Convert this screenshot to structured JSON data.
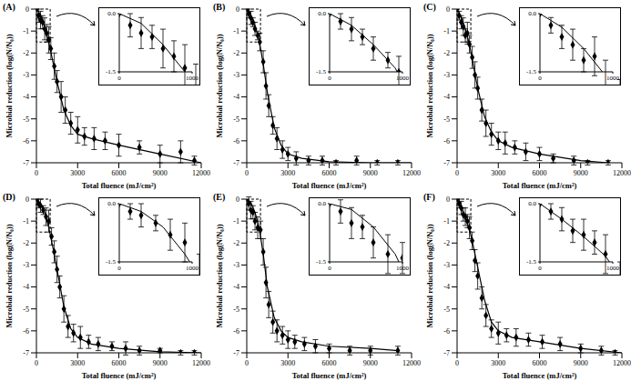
{
  "chart_data": [
    {
      "type": "scatter",
      "title": "(A)",
      "x_label": "Total fluence (mJ/cm²)",
      "y_label": "Microbial reduction (log(N/N₀))",
      "xlim": [
        0,
        12000
      ],
      "xticks": [
        0,
        3000,
        6000,
        9000,
        12000
      ],
      "ylim": [
        -7,
        0
      ],
      "yticks": [
        0,
        -1,
        -2,
        -3,
        -4,
        -5,
        -6,
        -7
      ],
      "color": "#000000",
      "marker": "diamond",
      "x": [
        0,
        150,
        300,
        450,
        600,
        750,
        900,
        1050,
        1300,
        1500,
        1800,
        2100,
        2500,
        3000,
        3500,
        4200,
        5000,
        6000,
        7500,
        9000,
        10500,
        11500
      ],
      "values": [
        0,
        -0.3,
        -0.5,
        -0.6,
        -0.9,
        -1.1,
        -1.4,
        -1.8,
        -2.6,
        -3.3,
        -4.0,
        -4.6,
        -5.2,
        -5.5,
        -5.8,
        -5.9,
        -6.0,
        -6.2,
        -6.3,
        -6.6,
        -6.5,
        -6.9
      ],
      "errors": [
        0,
        0.3,
        0.4,
        0.3,
        0.5,
        0.4,
        0.6,
        0.5,
        0.6,
        0.5,
        0.7,
        0.6,
        0.5,
        0.6,
        0.4,
        0.5,
        0.4,
        0.5,
        0.3,
        0.4,
        0.5,
        0.2
      ],
      "fit": {
        "x": [
          0,
          300,
          600,
          900,
          1200,
          1500,
          2000,
          2500,
          3000,
          4000,
          6000,
          9000,
          12000
        ],
        "values": [
          0,
          -0.25,
          -0.8,
          -1.5,
          -2.4,
          -3.3,
          -4.6,
          -5.3,
          -5.7,
          -5.9,
          -6.2,
          -6.6,
          -7.0
        ]
      },
      "inset": {
        "xlim": [
          0,
          1000
        ],
        "xticks": [
          0,
          1000
        ],
        "ylim": [
          -1.5,
          0
        ],
        "yticks": [
          {
            "value": 0,
            "label": "0.0"
          },
          -1.5
        ]
      }
    },
    {
      "type": "scatter",
      "title": "(B)",
      "x_label": "Total fluence (mJ/cm²)",
      "y_label": "Microbial reduction (log(N/N₀))",
      "xlim": [
        0,
        12000
      ],
      "xticks": [
        0,
        3000,
        6000,
        9000,
        12000
      ],
      "ylim": [
        -7,
        0
      ],
      "yticks": [
        0,
        -1,
        -2,
        -3,
        -4,
        -5,
        -6,
        -7
      ],
      "color": "#000000",
      "marker": "diamond",
      "x": [
        0,
        150,
        300,
        450,
        600,
        800,
        950,
        1200,
        1400,
        1600,
        1900,
        2200,
        2600,
        3000,
        3600,
        4500,
        5500,
        6500,
        8000,
        9500,
        11000
      ],
      "values": [
        0,
        -0.2,
        -0.4,
        -0.6,
        -0.9,
        -1.2,
        -1.5,
        -2.4,
        -3.5,
        -4.4,
        -5.3,
        -5.9,
        -6.4,
        -6.6,
        -6.8,
        -6.9,
        -6.9,
        -7.0,
        -6.9,
        -7.0,
        -7.0
      ],
      "errors": [
        0,
        0.2,
        0.3,
        0.2,
        0.3,
        0.2,
        0.4,
        0.5,
        0.6,
        0.5,
        0.4,
        0.5,
        0.4,
        0.3,
        0.3,
        0.2,
        0.2,
        0.1,
        0.2,
        0.1,
        0.1
      ],
      "fit": {
        "x": [
          0,
          300,
          600,
          900,
          1200,
          1500,
          2000,
          2500,
          3000,
          4000,
          6000,
          9000,
          12000
        ],
        "values": [
          0,
          -0.3,
          -0.8,
          -1.4,
          -2.5,
          -3.8,
          -5.4,
          -6.2,
          -6.6,
          -6.8,
          -6.95,
          -7.0,
          -7.0
        ]
      },
      "inset": {
        "xlim": [
          0,
          1000
        ],
        "xticks": [
          0,
          1000
        ],
        "ylim": [
          -1.5,
          0
        ],
        "yticks": [
          {
            "value": 0,
            "label": "0.0"
          },
          -1.5
        ]
      }
    },
    {
      "type": "scatter",
      "title": "(C)",
      "x_label": "Total fluence (mJ/cm²)",
      "y_label": "Microbial reduction (log(N/N₀))",
      "xlim": [
        0,
        12000
      ],
      "xticks": [
        0,
        3000,
        6000,
        9000,
        12000
      ],
      "ylim": [
        -7,
        0
      ],
      "yticks": [
        0,
        -1,
        -2,
        -3,
        -4,
        -5,
        -6,
        -7
      ],
      "color": "#000000",
      "marker": "diamond",
      "x": [
        0,
        150,
        300,
        450,
        600,
        750,
        900,
        1100,
        1300,
        1500,
        1800,
        2100,
        2500,
        3000,
        3500,
        4200,
        5000,
        6000,
        7000,
        8500,
        9500,
        11000
      ],
      "values": [
        0,
        -0.3,
        -0.6,
        -0.8,
        -1.2,
        -1.1,
        -1.6,
        -2.2,
        -3.0,
        -3.6,
        -4.6,
        -5.2,
        -5.7,
        -6.0,
        -6.1,
        -6.3,
        -6.5,
        -6.6,
        -6.8,
        -6.9,
        -7.0,
        -7.0
      ],
      "errors": [
        0,
        0.2,
        0.3,
        0.4,
        0.3,
        0.5,
        0.4,
        0.5,
        0.6,
        0.5,
        0.5,
        0.6,
        0.5,
        0.4,
        0.5,
        0.3,
        0.4,
        0.3,
        0.2,
        0.2,
        0.1,
        0.1
      ],
      "fit": {
        "x": [
          0,
          300,
          600,
          900,
          1200,
          1500,
          2000,
          2500,
          3000,
          4000,
          6000,
          9000,
          11000
        ],
        "values": [
          0,
          -0.35,
          -0.9,
          -1.6,
          -2.6,
          -3.6,
          -4.9,
          -5.6,
          -6.0,
          -6.3,
          -6.6,
          -6.9,
          -7.0
        ]
      },
      "inset": {
        "xlim": [
          0,
          1000
        ],
        "xticks": [
          0,
          1000
        ],
        "ylim": [
          -1.5,
          0
        ],
        "yticks": [
          {
            "value": 0,
            "label": "0.0"
          },
          -1.5
        ]
      }
    },
    {
      "type": "scatter",
      "title": "(D)",
      "x_label": "Total fluence (mJ/cm²)",
      "y_label": "Microbial reduction (log(N/N₀))",
      "xlim": [
        0,
        12000
      ],
      "xticks": [
        0,
        3000,
        6000,
        9000,
        12000
      ],
      "ylim": [
        -7,
        0
      ],
      "yticks": [
        0,
        -1,
        -2,
        -3,
        -4,
        -5,
        -6,
        -7
      ],
      "color": "#000000",
      "marker": "diamond",
      "x": [
        0,
        150,
        300,
        500,
        700,
        900,
        1100,
        1300,
        1500,
        1700,
        2000,
        2300,
        2700,
        3200,
        3800,
        4500,
        5500,
        6500,
        7500,
        9000,
        10500,
        11500
      ],
      "values": [
        0,
        -0.2,
        -0.3,
        -0.5,
        -0.8,
        -1.0,
        -1.7,
        -2.4,
        -3.2,
        -4.0,
        -5.0,
        -5.8,
        -6.1,
        -6.3,
        -6.5,
        -6.6,
        -6.7,
        -6.8,
        -6.9,
        -6.9,
        -7.0,
        -7.0
      ],
      "errors": [
        0,
        0.2,
        0.3,
        0.2,
        0.4,
        0.5,
        0.4,
        0.5,
        0.6,
        0.5,
        0.6,
        0.5,
        0.4,
        0.5,
        0.3,
        0.3,
        0.2,
        0.3,
        0.2,
        0.1,
        0.1,
        0.1
      ],
      "fit": {
        "x": [
          0,
          300,
          600,
          900,
          1200,
          1500,
          2000,
          2500,
          3000,
          4000,
          6000,
          9000,
          12000
        ],
        "values": [
          0,
          -0.2,
          -0.6,
          -1.3,
          -2.2,
          -3.2,
          -4.9,
          -5.9,
          -6.3,
          -6.6,
          -6.8,
          -6.95,
          -7.0
        ]
      },
      "inset": {
        "xlim": [
          0,
          1000
        ],
        "xticks": [
          0,
          1000
        ],
        "ylim": [
          -1.5,
          0
        ],
        "yticks": [
          {
            "value": 0,
            "label": "0.0"
          },
          -1.5
        ]
      }
    },
    {
      "type": "scatter",
      "title": "(E)",
      "x_label": "Total fluence (mJ/cm²)",
      "y_label": "Microbial reduction (log(N/N₀))",
      "xlim": [
        0,
        12000
      ],
      "xticks": [
        0,
        3000,
        6000,
        9000,
        12000
      ],
      "ylim": [
        -7,
        0
      ],
      "yticks": [
        0,
        -1,
        -2,
        -3,
        -4,
        -5,
        -6,
        -7
      ],
      "color": "#000000",
      "marker": "diamond",
      "x": [
        0,
        150,
        300,
        450,
        600,
        800,
        1000,
        1200,
        1400,
        1600,
        1900,
        2200,
        2600,
        3000,
        3500,
        4200,
        5000,
        6000,
        7500,
        9000,
        11000
      ],
      "values": [
        0,
        -0.2,
        -0.5,
        -0.6,
        -1.0,
        -1.3,
        -1.4,
        -2.4,
        -3.8,
        -4.8,
        -5.6,
        -6.0,
        -6.2,
        -6.4,
        -6.5,
        -6.6,
        -6.7,
        -6.8,
        -6.9,
        -6.9,
        -6.9
      ],
      "errors": [
        0,
        0.3,
        0.4,
        0.3,
        0.4,
        0.5,
        0.4,
        0.6,
        0.7,
        0.6,
        0.5,
        0.5,
        0.4,
        0.4,
        0.3,
        0.3,
        0.3,
        0.2,
        0.2,
        0.2,
        0.2
      ],
      "fit": {
        "x": [
          0,
          300,
          600,
          900,
          1200,
          1500,
          2000,
          2500,
          3000,
          4000,
          6000,
          9000,
          11000
        ],
        "values": [
          0,
          -0.15,
          -0.6,
          -1.3,
          -2.5,
          -4.0,
          -5.4,
          -6.0,
          -6.3,
          -6.5,
          -6.7,
          -6.8,
          -6.9
        ]
      },
      "inset": {
        "xlim": [
          0,
          1000
        ],
        "xticks": [
          0,
          1000
        ],
        "ylim": [
          -1.5,
          0
        ],
        "yticks": [
          {
            "value": 0,
            "label": "0.0"
          },
          -1.5
        ]
      }
    },
    {
      "type": "scatter",
      "title": "(F)",
      "x_label": "Total fluence (mJ/cm²)",
      "y_label": "Microbial reduction (log(N/N₀))",
      "xlim": [
        0,
        12000
      ],
      "xticks": [
        0,
        3000,
        6000,
        9000,
        12000
      ],
      "ylim": [
        -7,
        0
      ],
      "yticks": [
        0,
        -1,
        -2,
        -3,
        -4,
        -5,
        -6,
        -7
      ],
      "color": "#000000",
      "marker": "diamond",
      "x": [
        0,
        150,
        300,
        450,
        600,
        750,
        900,
        1100,
        1300,
        1500,
        1800,
        2100,
        2500,
        3000,
        3600,
        4300,
        5200,
        6200,
        7500,
        9000,
        10500,
        11500
      ],
      "values": [
        0,
        -0.2,
        -0.4,
        -0.7,
        -0.8,
        -1.0,
        -1.3,
        -1.9,
        -2.8,
        -3.5,
        -4.5,
        -5.3,
        -5.9,
        -6.1,
        -6.2,
        -6.3,
        -6.4,
        -6.5,
        -6.6,
        -6.8,
        -6.9,
        -7.0
      ],
      "errors": [
        0,
        0.2,
        0.3,
        0.3,
        0.4,
        0.3,
        0.5,
        0.4,
        0.5,
        0.6,
        0.5,
        0.5,
        0.4,
        0.5,
        0.3,
        0.4,
        0.3,
        0.3,
        0.3,
        0.2,
        0.2,
        0.1
      ],
      "fit": {
        "x": [
          0,
          300,
          600,
          900,
          1200,
          1500,
          2000,
          2500,
          3000,
          4000,
          6000,
          9000,
          12000
        ],
        "values": [
          0,
          -0.4,
          -0.85,
          -1.35,
          -2.2,
          -3.1,
          -4.6,
          -5.6,
          -6.0,
          -6.3,
          -6.5,
          -6.8,
          -7.0
        ]
      },
      "inset": {
        "xlim": [
          0,
          1000
        ],
        "xticks": [
          0,
          1000
        ],
        "ylim": [
          -1.5,
          0
        ],
        "yticks": [
          {
            "value": 0,
            "label": "0.0"
          },
          -1.5
        ]
      }
    }
  ]
}
